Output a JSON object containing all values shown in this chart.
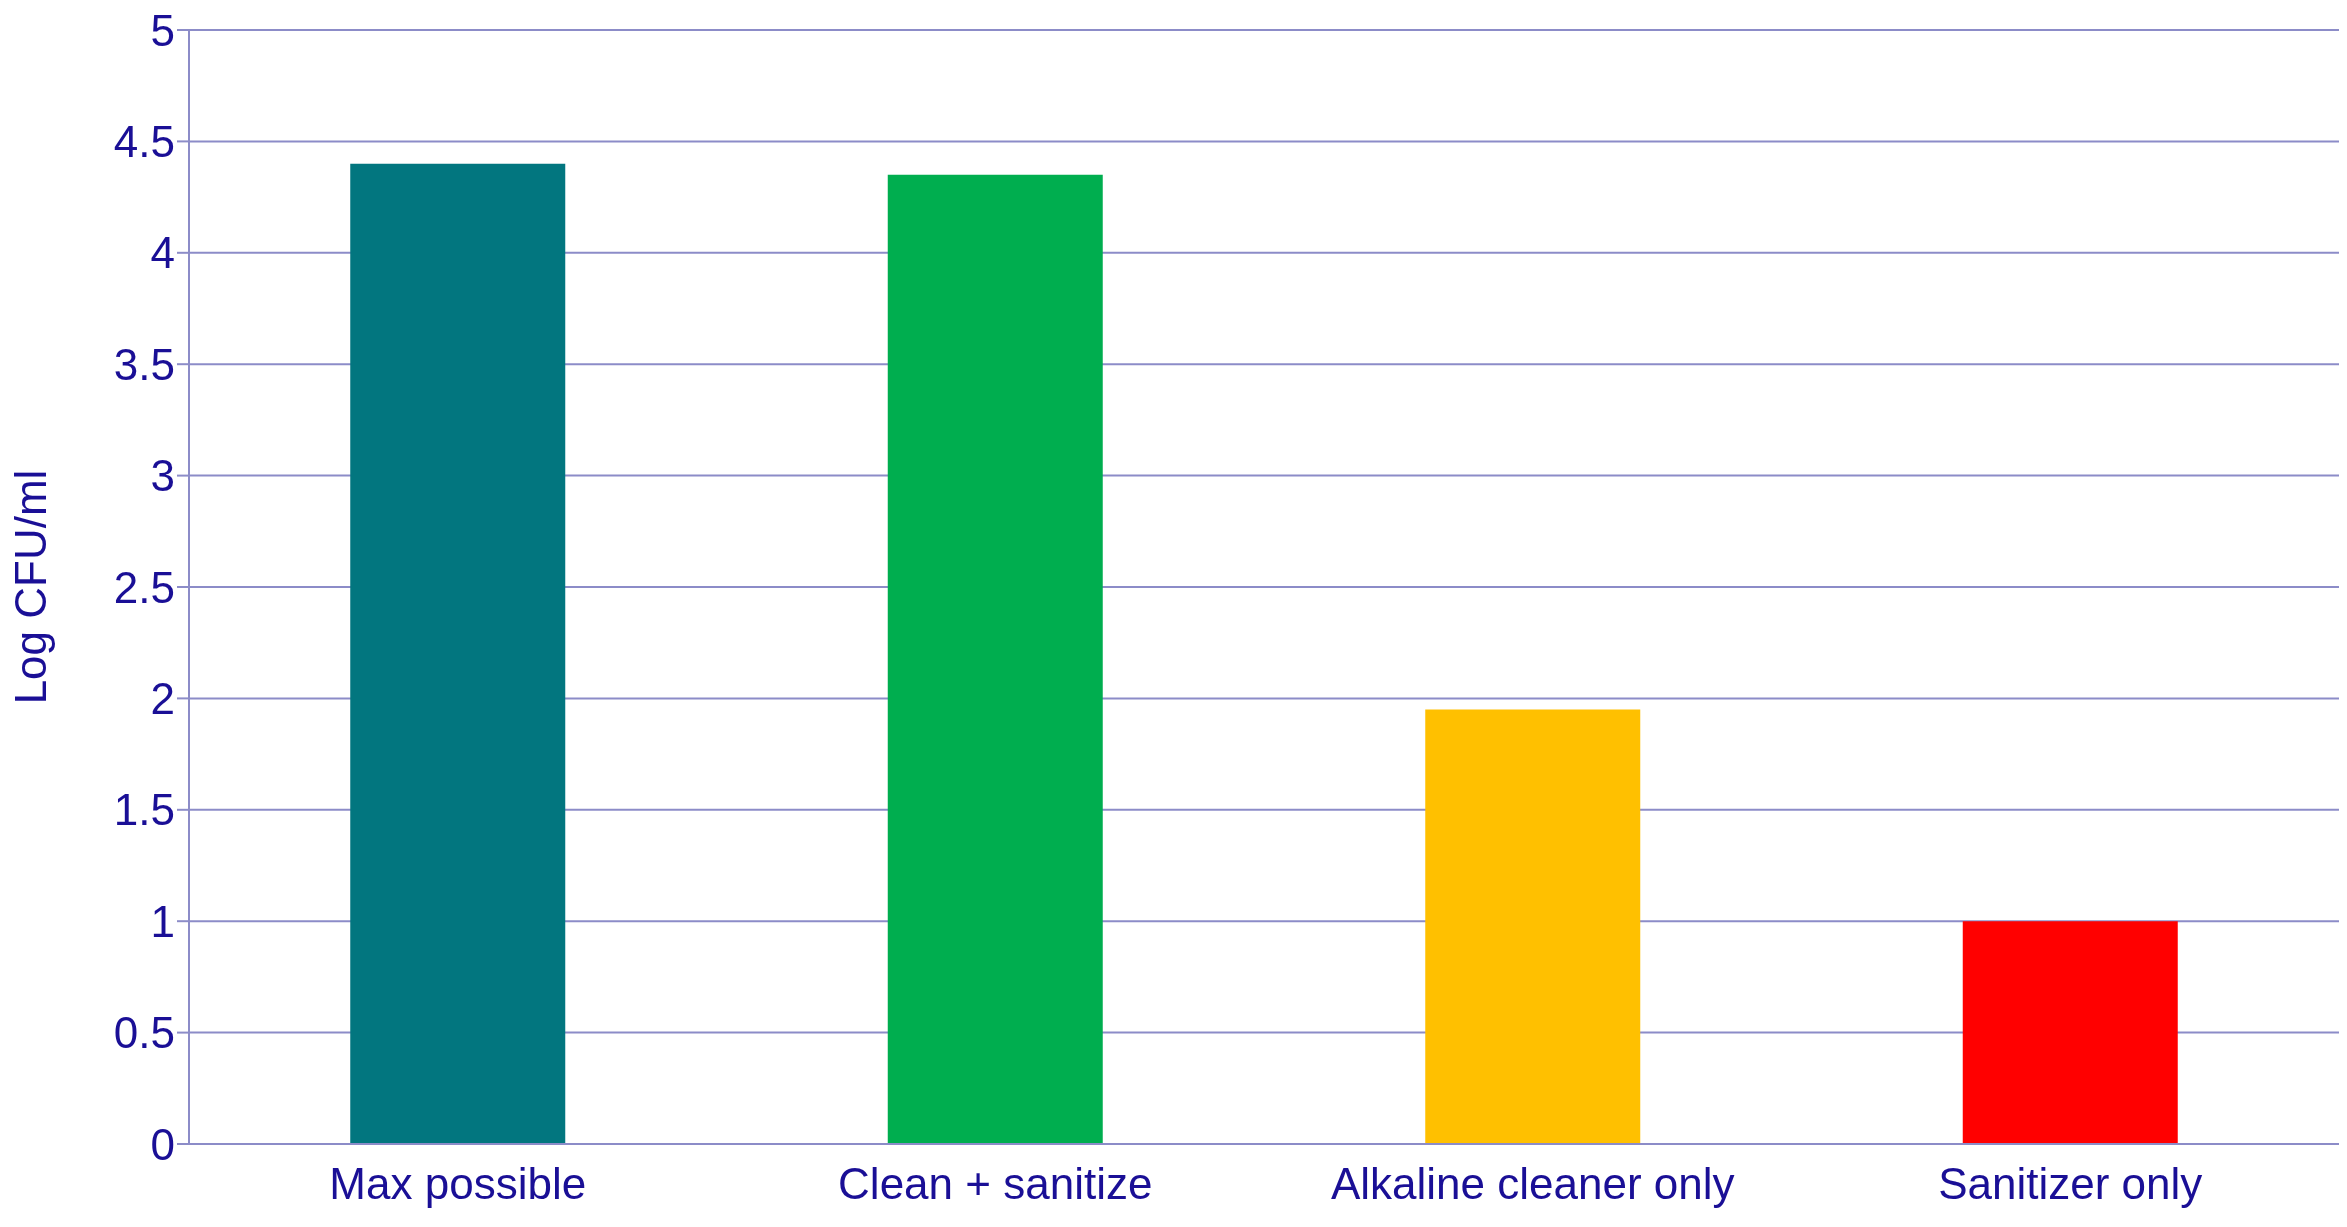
{
  "chart_data": {
    "type": "bar",
    "ylabel": "Log CFU/ml",
    "categories": [
      "Max possible",
      "Clean + sanitize",
      "Alkaline cleaner only",
      "Sanitizer only"
    ],
    "values": [
      4.4,
      4.35,
      1.95,
      1.0
    ],
    "colors": [
      "#02767f",
      "#00ae4f",
      "#ffc000",
      "#ff0000"
    ],
    "ylim": [
      0,
      5
    ],
    "yticks": [
      0,
      {
        "value": 0.5,
        "label": "0.5"
      },
      1,
      {
        "value": 1.5,
        "label": "1.5"
      },
      2,
      {
        "value": 2.5,
        "label": "2.5"
      },
      3,
      {
        "value": 3.5,
        "label": "3.5"
      },
      4,
      {
        "value": 4.5,
        "label": "4.5"
      },
      5
    ],
    "grid": "y",
    "legend": false
  }
}
